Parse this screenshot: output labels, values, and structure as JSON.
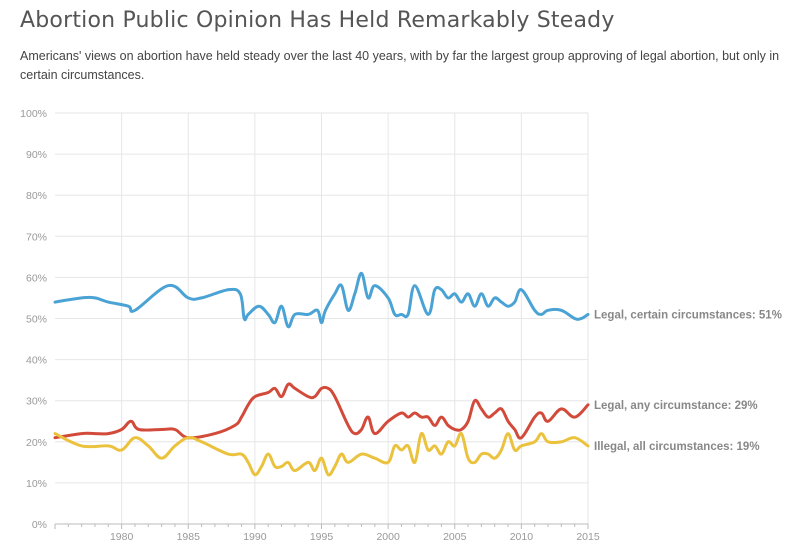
{
  "title": "Abortion Public Opinion Has Held Remarkably Steady",
  "subtitle": "Americans' views on abortion have held steady over the last 40 years, with by far the largest group approving of legal abortion, but only in certain circumstances.",
  "chart_data": {
    "type": "line",
    "xlim": [
      1975,
      2015
    ],
    "ylim": [
      0,
      100
    ],
    "x_ticks": [
      1980,
      1985,
      1990,
      1995,
      2000,
      2005,
      2010,
      2015
    ],
    "y_ticks": [
      0,
      10,
      20,
      30,
      40,
      50,
      60,
      70,
      80,
      90,
      100
    ],
    "y_tick_labels": [
      "0%",
      "10%",
      "20%",
      "30%",
      "40%",
      "50%",
      "60%",
      "70%",
      "80%",
      "90%",
      "100%"
    ],
    "grid": true,
    "series": [
      {
        "name": "Legal, certain circumstances: 51%",
        "color": "#4aa3d4",
        "x": [
          1975,
          1977,
          1978,
          1979,
          1980.5,
          1981,
          1983.5,
          1985,
          1986,
          1988,
          1988.9,
          1989.2,
          1989.5,
          1990.3,
          1991,
          1991.5,
          1992,
          1992.5,
          1993,
          1994,
          1994.7,
          1995,
          1995.3,
          1996,
          1996.5,
          1997,
          1997.5,
          1998,
          1998.5,
          1999,
          2000,
          2000.5,
          2001,
          2001.5,
          2002,
          2003,
          2003.5,
          2004,
          2004.5,
          2005,
          2005.5,
          2006,
          2006.5,
          2007,
          2007.5,
          2008,
          2008.5,
          2009,
          2009.5,
          2010,
          2011,
          2011.5,
          2012,
          2013,
          2014,
          2014.5,
          2015
        ],
        "y": [
          54,
          55,
          55,
          54,
          53,
          52,
          58,
          55,
          55,
          57,
          56,
          50,
          51,
          53,
          51,
          49,
          53,
          48,
          51,
          51,
          52,
          49,
          52,
          56,
          58,
          52,
          56,
          61,
          55,
          58,
          55,
          51,
          51,
          51,
          58,
          51,
          57,
          57,
          55,
          56,
          54,
          56,
          53,
          56,
          53,
          55,
          54,
          53,
          54,
          57,
          52,
          51,
          52,
          52,
          50,
          50,
          51
        ]
      },
      {
        "name": "Legal, any circumstance: 29%",
        "color": "#d24a3a",
        "x": [
          1975,
          1977,
          1978,
          1979,
          1980,
          1980.7,
          1981.3,
          1983,
          1984,
          1985,
          1987,
          1988.5,
          1989,
          1989.5,
          1990,
          1991,
          1991.5,
          1992,
          1992.5,
          1993,
          1994,
          1994.5,
          1995,
          1995.5,
          1996,
          1997,
          1997.5,
          1998,
          1998.5,
          1999,
          2000,
          2001,
          2001.5,
          2002,
          2002.5,
          2003,
          2003.5,
          2004,
          2004.5,
          2005,
          2005.5,
          2006,
          2006.5,
          2007,
          2007.5,
          2008,
          2008.5,
          2009,
          2009.5,
          2010,
          2011,
          2011.5,
          2012,
          2013,
          2014,
          2015
        ],
        "y": [
          21,
          22,
          22,
          22,
          23,
          25,
          23,
          23,
          23,
          21,
          22,
          24,
          26,
          29,
          31,
          32,
          33,
          31,
          34,
          33,
          31,
          31,
          33,
          33,
          31,
          24,
          22,
          23,
          26,
          22,
          25,
          27,
          26,
          27,
          26,
          26,
          24,
          26,
          24,
          23,
          23,
          25,
          30,
          28,
          26,
          27,
          28,
          25,
          23,
          21,
          26,
          27,
          25,
          28,
          26,
          29
        ]
      },
      {
        "name": "Illegal, all circumstances: 19%",
        "color": "#ebc23e",
        "x": [
          1975,
          1977,
          1979,
          1980,
          1981,
          1982,
          1983,
          1984,
          1985,
          1986,
          1988,
          1989,
          1989.5,
          1990,
          1990.5,
          1991,
          1991.5,
          1992,
          1992.5,
          1993,
          1994,
          1994.5,
          1995,
          1995.5,
          1996,
          1996.5,
          1997,
          1998,
          1999,
          2000,
          2000.5,
          2001,
          2001.5,
          2002,
          2002.5,
          2003,
          2003.5,
          2004,
          2004.5,
          2005,
          2005.5,
          2006,
          2006.5,
          2007,
          2007.5,
          2008,
          2008.5,
          2009,
          2009.5,
          2010,
          2011,
          2011.5,
          2012,
          2013,
          2014,
          2015
        ],
        "y": [
          22,
          19,
          19,
          18,
          21,
          19,
          16,
          19,
          21,
          20,
          17,
          17,
          15,
          12,
          14,
          17,
          14,
          14,
          15,
          13,
          15,
          13,
          16,
          12,
          14,
          17,
          15,
          17,
          16,
          15,
          19,
          18,
          19,
          15,
          22,
          18,
          19,
          17,
          20,
          19,
          22,
          16,
          15,
          17,
          17,
          16,
          18,
          22,
          18,
          19,
          20,
          22,
          20,
          20,
          21,
          19
        ]
      }
    ]
  }
}
